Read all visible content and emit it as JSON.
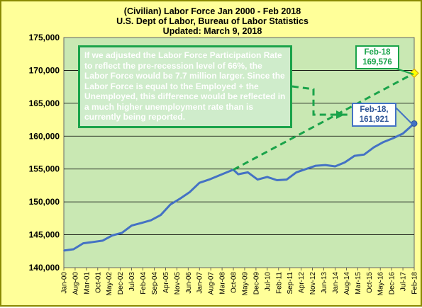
{
  "chart_data": {
    "type": "line",
    "title": [
      "(Civilian) Labor Force Jan 2000 - Feb 2018",
      "U.S. Dept of Labor, Bureau of Labor Statistics",
      "Updated: March 9, 2018"
    ],
    "ylim": [
      140000,
      175000
    ],
    "y_ticks": [
      "140,000",
      "145,000",
      "150,000",
      "155,000",
      "160,000",
      "165,000",
      "170,000",
      "175,000"
    ],
    "x_ticks": [
      "Jan-00",
      "Aug-00",
      "Mar-01",
      "Oct-01",
      "May-02",
      "Dec-02",
      "Jul-03",
      "Feb-04",
      "Sep-04",
      "Apr-05",
      "Nov-05",
      "Jun-06",
      "Jan-07",
      "Aug-07",
      "Mar-08",
      "Oct-08",
      "May-09",
      "Dec-09",
      "Jul-10",
      "Feb-11",
      "Sep-11",
      "Apr-12",
      "Nov-12",
      "Jun-13",
      "Jan-14",
      "Aug-14",
      "Mar-15",
      "Oct-15",
      "May-16",
      "Dec-16",
      "Jul-17",
      "Feb-18"
    ],
    "series": [
      {
        "style": "solid",
        "color": "#4472c4",
        "points": [
          [
            "Jan-00",
            142600
          ],
          [
            "Jul-00",
            142800
          ],
          [
            "Jan-01",
            143700
          ],
          [
            "Jul-01",
            143900
          ],
          [
            "Jan-02",
            144100
          ],
          [
            "Jul-02",
            144900
          ],
          [
            "Jan-03",
            145300
          ],
          [
            "Jul-03",
            146400
          ],
          [
            "Jan-04",
            146800
          ],
          [
            "Jul-04",
            147200
          ],
          [
            "Jan-05",
            148000
          ],
          [
            "Jul-05",
            149600
          ],
          [
            "Jan-06",
            150500
          ],
          [
            "Jul-06",
            151500
          ],
          [
            "Jan-07",
            152900
          ],
          [
            "Jul-07",
            153400
          ],
          [
            "Jan-08",
            154000
          ],
          [
            "Jul-08",
            154600
          ],
          [
            "Oct-08",
            154900
          ],
          [
            "Jan-09",
            154200
          ],
          [
            "Jul-09",
            154500
          ],
          [
            "Jan-10",
            153400
          ],
          [
            "Jul-10",
            153800
          ],
          [
            "Jan-11",
            153300
          ],
          [
            "Jul-11",
            153400
          ],
          [
            "Jan-12",
            154500
          ],
          [
            "Jul-12",
            155000
          ],
          [
            "Jan-13",
            155500
          ],
          [
            "Jul-13",
            155600
          ],
          [
            "Jan-14",
            155400
          ],
          [
            "Jul-14",
            156000
          ],
          [
            "Jan-15",
            157000
          ],
          [
            "Jul-15",
            157200
          ],
          [
            "Jan-16",
            158300
          ],
          [
            "Jul-16",
            159100
          ],
          [
            "Jan-17",
            159700
          ],
          [
            "Jul-17",
            160400
          ],
          [
            "Feb-18",
            161921
          ]
        ]
      },
      {
        "style": "dashed",
        "color": "#1aa34a",
        "points": [
          [
            "Oct-08",
            154900
          ],
          [
            "Feb-18",
            169576
          ]
        ]
      }
    ],
    "annotations": {
      "note": "If we adjusted the Labor Force Participation Rate to reflect the pre-recession level of 66%, the Labor Force would be 7.7 million larger. Since the Labor Force is equal to the Employed + the Unemployed, this difference would be reflected in a much higher unemployment rate than is currently being reported.",
      "green_label": [
        "Feb-18",
        "169,576"
      ],
      "blue_label": [
        "Feb-18,",
        "161,921"
      ]
    },
    "grid": true,
    "colors": {
      "background": "#ffff99",
      "plot": "#c9e8b3",
      "solid": "#4472c4",
      "dashed": "#1aa34a"
    }
  }
}
